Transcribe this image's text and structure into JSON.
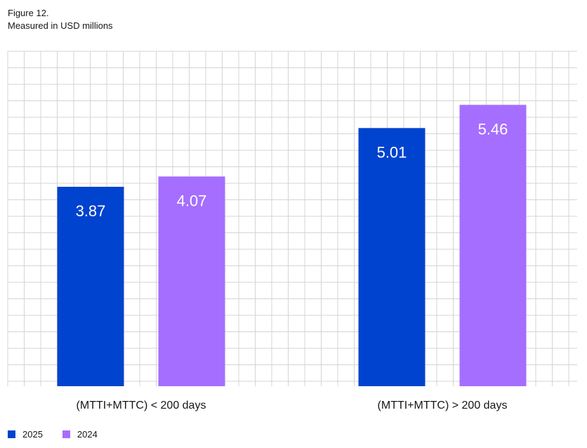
{
  "header": {
    "figure_label": "Figure 12.",
    "subtitle": "Measured in USD millions"
  },
  "colors": {
    "series_2025": "#0043ce",
    "series_2024": "#a56eff",
    "grid": "#d4d4d4"
  },
  "chart_data": {
    "type": "bar",
    "title": "",
    "xlabel": "",
    "ylabel": "",
    "categories": [
      "(MTTI+MTTC) < 200 days",
      "(MTTI+MTTC) > 200 days"
    ],
    "series": [
      {
        "name": "2025",
        "values": [
          3.87,
          5.01
        ],
        "color": "#0043ce"
      },
      {
        "name": "2024",
        "values": [
          4.07,
          5.46
        ],
        "color": "#a56eff"
      }
    ],
    "ylim": [
      0,
      6.5
    ],
    "grid": true,
    "legend_position": "bottom-left",
    "data_labels": [
      "3.87",
      "5.01",
      "4.07",
      "5.46"
    ]
  },
  "legend": {
    "items": [
      {
        "label": "2025",
        "color": "#0043ce"
      },
      {
        "label": "2024",
        "color": "#a56eff"
      }
    ]
  }
}
